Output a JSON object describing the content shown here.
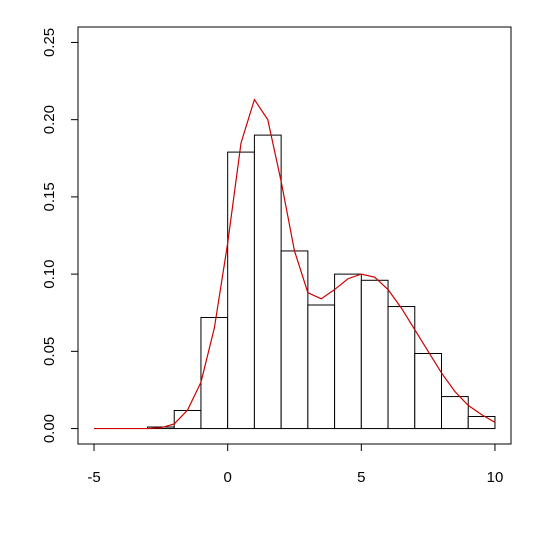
{
  "chart_data": {
    "type": "histogram",
    "bins": [
      -3,
      -2,
      -1,
      0,
      1,
      2,
      3,
      4,
      5,
      6,
      7,
      8,
      9,
      10
    ],
    "values": [
      0.001,
      0.0117,
      0.0719,
      0.179,
      0.19,
      0.115,
      0.08,
      0.1,
      0.096,
      0.079,
      0.0486,
      0.0207,
      0.0078
    ],
    "color": "#ffffff",
    "density": {
      "color": "#cc0000",
      "x": [
        -5,
        -4,
        -3,
        -2.5,
        -2,
        -1.5,
        -1,
        -0.5,
        0,
        0.5,
        1,
        1.5,
        2,
        2.5,
        3,
        3.5,
        4,
        4.5,
        5,
        5.5,
        6,
        6.5,
        7,
        7.5,
        8,
        8.5,
        9,
        9.5,
        10
      ],
      "values": [
        0,
        0,
        0,
        0.0005,
        0.003,
        0.012,
        0.03,
        0.065,
        0.12,
        0.185,
        0.213,
        0.2,
        0.16,
        0.115,
        0.088,
        0.084,
        0.09,
        0.097,
        0.1,
        0.098,
        0.09,
        0.078,
        0.064,
        0.05,
        0.036,
        0.024,
        0.015,
        0.009,
        0.004
      ]
    },
    "xlim": [
      -5.6,
      10.6
    ],
    "ylim": [
      -0.01,
      0.26
    ],
    "xticks": [
      -5,
      0,
      5,
      10
    ],
    "yticks": [
      {
        "value": 0,
        "label": "0.00"
      },
      {
        "value": 0.05,
        "label": "0.05"
      },
      {
        "value": 0.1,
        "label": "0.10"
      },
      {
        "value": 0.15,
        "label": "0.15"
      },
      {
        "value": 0.2,
        "label": "0.20"
      },
      {
        "value": 0.25,
        "label": "0.25"
      }
    ]
  }
}
